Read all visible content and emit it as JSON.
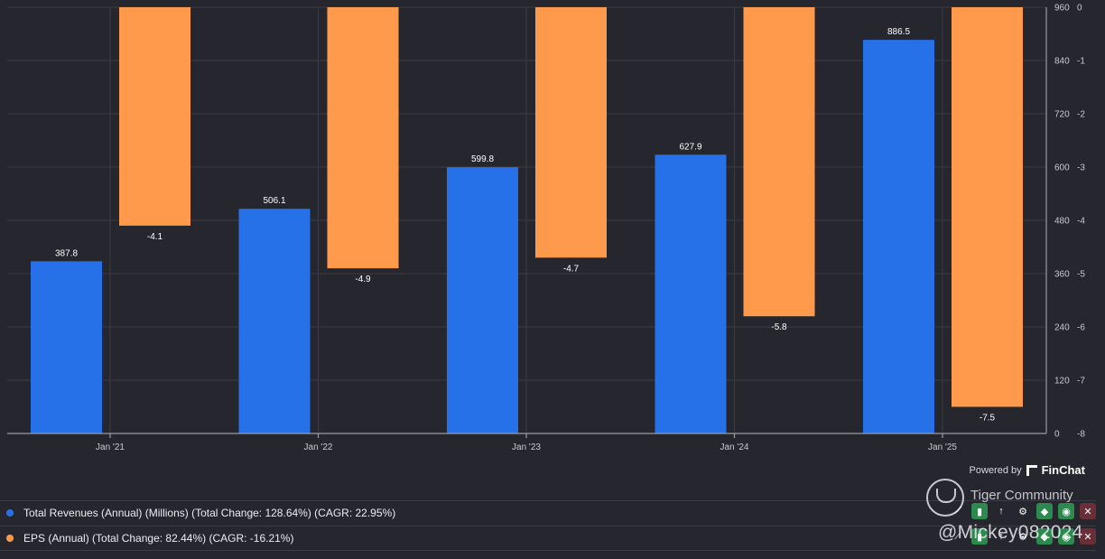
{
  "chart_data": {
    "type": "bar",
    "categories": [
      "Jan '21",
      "Jan '22",
      "Jan '23",
      "Jan '24",
      "Jan '25"
    ],
    "series": [
      {
        "name": "Total Revenues (Annual) (Millions)",
        "color": "#2671e8",
        "axis": "left",
        "values": [
          387.8,
          506.1,
          599.8,
          627.9,
          886.5
        ],
        "labels": [
          "387.8",
          "506.1",
          "599.8",
          "627.9",
          "886.5"
        ]
      },
      {
        "name": "EPS (Annual)",
        "color": "#ff9a4d",
        "axis": "right",
        "values": [
          -4.1,
          -4.9,
          -4.7,
          -5.8,
          -7.5
        ],
        "labels": [
          "-4.1",
          "-4.9",
          "-4.7",
          "-5.8",
          "-7.5"
        ]
      }
    ],
    "y_left": {
      "min": 0,
      "max": 960,
      "ticks": [
        0,
        120,
        240,
        360,
        480,
        600,
        720,
        840,
        960
      ]
    },
    "y_right": {
      "min": -8,
      "max": 0,
      "ticks": [
        0,
        -1,
        -2,
        -3,
        -4,
        -5,
        -6,
        -7,
        -8
      ]
    },
    "grid": true
  },
  "powered_by": {
    "label": "Powered by",
    "brand": "FinChat"
  },
  "legend": [
    {
      "text": "Total Revenues (Annual) (Millions) (Total Change: 128.64%) (CAGR: 22.95%)",
      "color": "#2671e8"
    },
    {
      "text": "EPS (Annual) (Total Change: 82.44%) (CAGR: -16.21%)",
      "color": "#ff9a4d"
    }
  ],
  "watermark": {
    "title": "Tiger Community",
    "user": "@Mickey082024"
  },
  "icons": [
    "trend-icon",
    "bar-chart-icon",
    "sort-icon",
    "gear-icon",
    "tag-icon",
    "eye-icon",
    "close-icon"
  ]
}
